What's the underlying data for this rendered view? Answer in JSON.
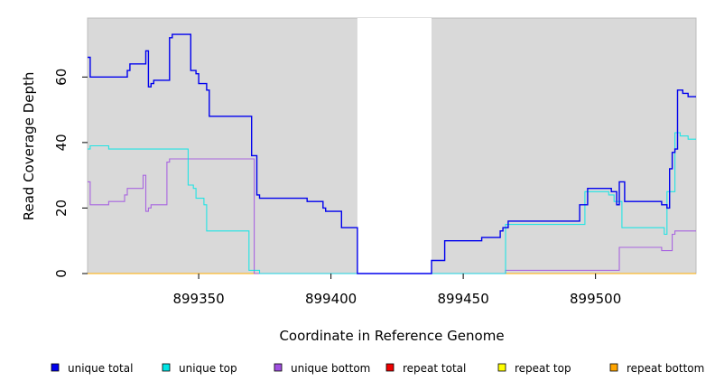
{
  "chart_data": {
    "type": "line",
    "title": "",
    "xlabel": "Coordinate in Reference Genome",
    "ylabel": "Read Coverage Depth",
    "xlim": [
      899308,
      899538
    ],
    "ylim": [
      0,
      78
    ],
    "xticks": [
      899350,
      899400,
      899450,
      899500
    ],
    "xtick_labels": [
      "899350",
      "899400",
      "899450",
      "899500"
    ],
    "yticks": [
      0,
      20,
      40,
      60
    ],
    "ytick_labels": [
      "0",
      "20",
      "40",
      "60"
    ],
    "panel_color": "#d9d9d9",
    "gap": [
      899410,
      899438
    ],
    "legend_position": "bottom",
    "series": [
      {
        "name": "unique total",
        "color": "#0000ee",
        "points": [
          [
            899308,
            66
          ],
          [
            899309,
            66
          ],
          [
            899309,
            60
          ],
          [
            899323,
            60
          ],
          [
            899323,
            62
          ],
          [
            899324,
            62
          ],
          [
            899324,
            64
          ],
          [
            899330,
            64
          ],
          [
            899330,
            68
          ],
          [
            899331,
            68
          ],
          [
            899331,
            57
          ],
          [
            899332,
            57
          ],
          [
            899332,
            58
          ],
          [
            899333,
            58
          ],
          [
            899333,
            59
          ],
          [
            899339,
            59
          ],
          [
            899339,
            72
          ],
          [
            899340,
            72
          ],
          [
            899340,
            73
          ],
          [
            899347,
            73
          ],
          [
            899347,
            62
          ],
          [
            899349,
            62
          ],
          [
            899349,
            61
          ],
          [
            899350,
            61
          ],
          [
            899350,
            58
          ],
          [
            899353,
            58
          ],
          [
            899353,
            56
          ],
          [
            899354,
            56
          ],
          [
            899354,
            48
          ],
          [
            899370,
            48
          ],
          [
            899370,
            36
          ],
          [
            899372,
            36
          ],
          [
            899372,
            24
          ],
          [
            899373,
            24
          ],
          [
            899373,
            23
          ],
          [
            899391,
            23
          ],
          [
            899391,
            22
          ],
          [
            899397,
            22
          ],
          [
            899397,
            20
          ],
          [
            899398,
            20
          ],
          [
            899398,
            19
          ],
          [
            899404,
            19
          ],
          [
            899404,
            14
          ],
          [
            899410,
            14
          ],
          [
            899410,
            0
          ],
          [
            899438,
            0
          ],
          [
            899438,
            4
          ],
          [
            899443,
            4
          ],
          [
            899443,
            10
          ],
          [
            899457,
            10
          ],
          [
            899457,
            11
          ],
          [
            899464,
            11
          ],
          [
            899464,
            13
          ],
          [
            899465,
            13
          ],
          [
            899465,
            14
          ],
          [
            899467,
            14
          ],
          [
            899467,
            16
          ],
          [
            899494,
            16
          ],
          [
            899494,
            21
          ],
          [
            899497,
            21
          ],
          [
            899497,
            26
          ],
          [
            899506,
            26
          ],
          [
            899506,
            25
          ],
          [
            899508,
            25
          ],
          [
            899508,
            21
          ],
          [
            899509,
            21
          ],
          [
            899509,
            28
          ],
          [
            899511,
            28
          ],
          [
            899511,
            22
          ],
          [
            899525,
            22
          ],
          [
            899525,
            21
          ],
          [
            899527,
            21
          ],
          [
            899527,
            20
          ],
          [
            899528,
            20
          ],
          [
            899528,
            32
          ],
          [
            899529,
            32
          ],
          [
            899529,
            37
          ],
          [
            899530,
            37
          ],
          [
            899530,
            38
          ],
          [
            899531,
            38
          ],
          [
            899531,
            56
          ],
          [
            899533,
            56
          ],
          [
            899533,
            55
          ],
          [
            899535,
            55
          ],
          [
            899535,
            54
          ],
          [
            899538,
            54
          ]
        ]
      },
      {
        "name": "unique top",
        "color": "#00e5e5",
        "points": [
          [
            899308,
            38
          ],
          [
            899309,
            38
          ],
          [
            899309,
            39
          ],
          [
            899316,
            39
          ],
          [
            899316,
            38
          ],
          [
            899346,
            38
          ],
          [
            899346,
            27
          ],
          [
            899348,
            27
          ],
          [
            899348,
            26
          ],
          [
            899349,
            26
          ],
          [
            899349,
            23
          ],
          [
            899352,
            23
          ],
          [
            899352,
            21
          ],
          [
            899353,
            21
          ],
          [
            899353,
            13
          ],
          [
            899369,
            13
          ],
          [
            899369,
            1
          ],
          [
            899373,
            1
          ],
          [
            899373,
            0
          ],
          [
            899466,
            0
          ],
          [
            899466,
            15
          ],
          [
            899496,
            15
          ],
          [
            899496,
            25
          ],
          [
            899505,
            25
          ],
          [
            899505,
            24
          ],
          [
            899507,
            24
          ],
          [
            899507,
            22
          ],
          [
            899510,
            22
          ],
          [
            899510,
            14
          ],
          [
            899526,
            14
          ],
          [
            899526,
            12
          ],
          [
            899527,
            12
          ],
          [
            899527,
            25
          ],
          [
            899530,
            25
          ],
          [
            899530,
            43
          ],
          [
            899532,
            43
          ],
          [
            899532,
            42
          ],
          [
            899535,
            42
          ],
          [
            899535,
            41
          ],
          [
            899538,
            41
          ]
        ]
      },
      {
        "name": "unique bottom",
        "color": "#a050e0",
        "points": [
          [
            899308,
            28
          ],
          [
            899309,
            28
          ],
          [
            899309,
            21
          ],
          [
            899316,
            21
          ],
          [
            899316,
            22
          ],
          [
            899322,
            22
          ],
          [
            899322,
            24
          ],
          [
            899323,
            24
          ],
          [
            899323,
            26
          ],
          [
            899329,
            26
          ],
          [
            899329,
            30
          ],
          [
            899330,
            30
          ],
          [
            899330,
            19
          ],
          [
            899331,
            19
          ],
          [
            899331,
            20
          ],
          [
            899332,
            20
          ],
          [
            899332,
            21
          ],
          [
            899338,
            21
          ],
          [
            899338,
            34
          ],
          [
            899339,
            34
          ],
          [
            899339,
            35
          ],
          [
            899371,
            35
          ],
          [
            899371,
            0
          ],
          [
            899466,
            0
          ],
          [
            899466,
            1
          ],
          [
            899509,
            1
          ],
          [
            899509,
            8
          ],
          [
            899525,
            8
          ],
          [
            899525,
            7
          ],
          [
            899529,
            7
          ],
          [
            899529,
            12
          ],
          [
            899530,
            12
          ],
          [
            899530,
            13
          ],
          [
            899538,
            13
          ]
        ]
      },
      {
        "name": "repeat total",
        "color": "#ee0000",
        "points": [
          [
            899308,
            0
          ],
          [
            899538,
            0
          ]
        ]
      },
      {
        "name": "repeat top",
        "color": "#ffff00",
        "points": [
          [
            899308,
            0
          ],
          [
            899538,
            0
          ]
        ]
      },
      {
        "name": "repeat bottom",
        "color": "#ffa500",
        "points": [
          [
            899308,
            0
          ],
          [
            899538,
            0
          ]
        ]
      }
    ]
  }
}
